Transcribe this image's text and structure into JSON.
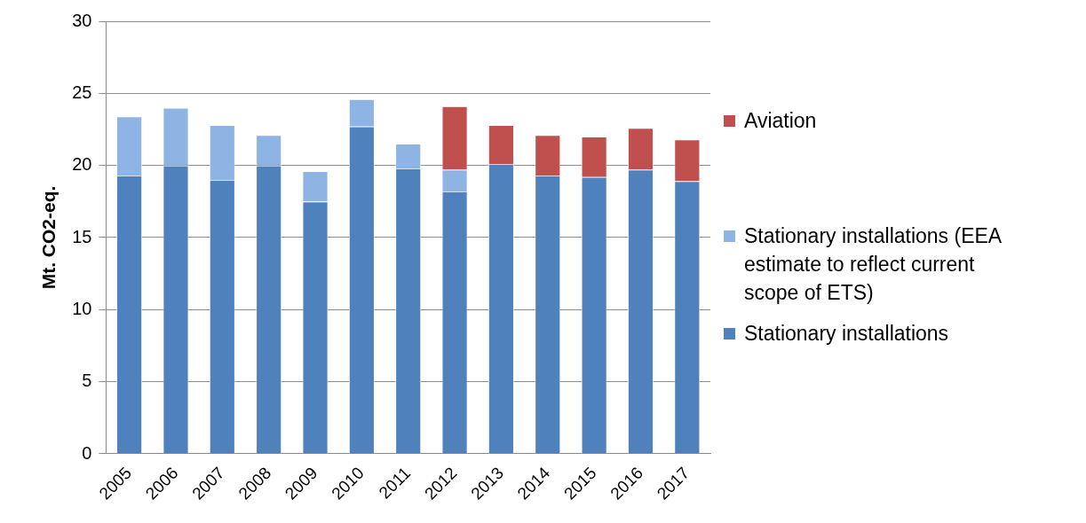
{
  "chart_data": {
    "type": "bar",
    "stacked": true,
    "ylabel": "Mt. CO2-eq.",
    "categories": [
      "2005",
      "2006",
      "2007",
      "2008",
      "2009",
      "2010",
      "2011",
      "2012",
      "2013",
      "2014",
      "2015",
      "2016",
      "2017"
    ],
    "series": [
      {
        "name": "Stationary installations",
        "color": "#4f81bd",
        "values": [
          19.3,
          20.0,
          19.0,
          20.0,
          17.5,
          22.7,
          19.8,
          18.2,
          20.1,
          19.3,
          19.2,
          19.7,
          18.9
        ]
      },
      {
        "name": "Stationary installations (EEA estimate to reflect current scope of ETS)",
        "color": "#8eb4e3",
        "values": [
          4.1,
          4.0,
          3.8,
          2.1,
          2.1,
          1.9,
          1.7,
          1.5,
          null,
          null,
          null,
          null,
          null
        ]
      },
      {
        "name": "Aviation",
        "color": "#c0504d",
        "values": [
          null,
          null,
          null,
          null,
          null,
          null,
          null,
          4.4,
          2.7,
          2.8,
          2.8,
          2.9,
          2.9
        ]
      }
    ],
    "ylim": [
      0,
      30
    ],
    "yticks": [
      0,
      5,
      10,
      15,
      20,
      25,
      30
    ],
    "grid": "y",
    "legend": "right"
  }
}
